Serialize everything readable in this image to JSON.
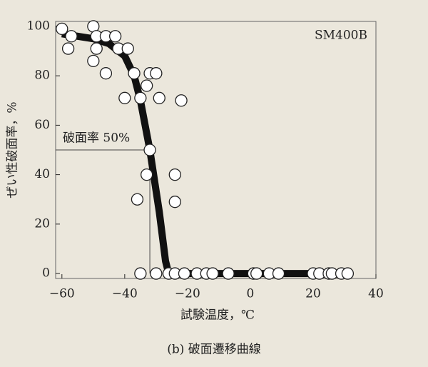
{
  "chart_data": {
    "type": "scatter",
    "caption": "(b) 破面遷移曲線",
    "label": "SM400B",
    "xlabel": "試験温度，℃",
    "ylabel": "ぜい性破面率，%",
    "xlim": [
      -62,
      40
    ],
    "ylim": [
      -2,
      102
    ],
    "xticks": [
      {
        "value": -60,
        "label": "−60"
      },
      {
        "value": -40,
        "label": "−40"
      },
      {
        "value": -20,
        "label": "−20"
      },
      0,
      20,
      40
    ],
    "yticks": [
      0,
      20,
      40,
      60,
      80,
      100
    ],
    "points": {
      "color": "#ffffff",
      "x": [
        -60,
        -58,
        -57,
        -50,
        -49,
        -49,
        -46,
        -50,
        -46,
        -43,
        -42,
        -39,
        -40,
        -37,
        -35,
        -33,
        -32,
        -33,
        -36,
        -35,
        -32,
        -30,
        -29,
        -22,
        -24,
        -24,
        -30,
        -26,
        -24,
        -21,
        -17,
        -14,
        -12,
        -7,
        1,
        2,
        6,
        9,
        20,
        22,
        25,
        26,
        29,
        31
      ],
      "y": [
        99,
        91,
        96,
        100,
        96,
        91,
        96,
        86,
        81,
        96,
        91,
        91,
        71,
        81,
        71,
        76,
        50,
        40,
        30,
        0,
        81,
        81,
        71,
        70,
        40,
        29,
        0,
        0,
        0,
        0,
        0,
        0,
        0,
        0,
        0,
        0,
        0,
        0,
        0,
        0,
        0,
        0,
        0,
        0
      ]
    },
    "curve": {
      "color": "#111111",
      "x": [
        -60,
        -50,
        -45,
        -40,
        -37,
        -35,
        -32,
        -29,
        -27,
        -26,
        30
      ],
      "y": [
        97,
        95,
        93,
        88,
        80,
        70,
        50,
        25,
        5,
        0,
        0
      ]
    },
    "annotation": {
      "text": "破面率 50%",
      "x": -32,
      "y": 50
    }
  }
}
